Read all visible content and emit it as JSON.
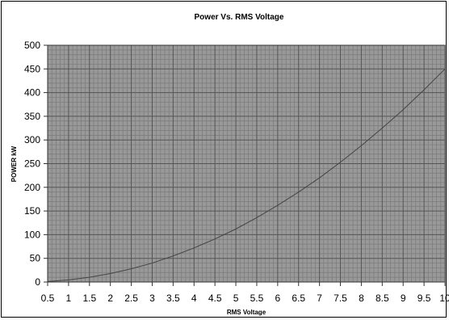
{
  "chart_data": {
    "type": "line",
    "title": "Power Vs. RMS Voltage",
    "xlabel": "RMS Voltage",
    "ylabel": "POWER kW",
    "xlim": [
      0.5,
      10
    ],
    "ylim": [
      0,
      500
    ],
    "x_ticks": [
      "0.5",
      "1",
      "1.5",
      "2",
      "2.5",
      "3",
      "3.5",
      "4",
      "4.5",
      "5",
      "5.5",
      "6",
      "6.5",
      "7",
      "7.5",
      "8",
      "8.5",
      "9",
      "9.5",
      "10"
    ],
    "y_ticks": [
      "0",
      "50",
      "100",
      "150",
      "200",
      "250",
      "300",
      "350",
      "400",
      "450",
      "500"
    ],
    "grid": true,
    "legend": "none",
    "colors": {
      "plot_background": "#999999",
      "grid_major": "#555555",
      "grid_minor": "#7a7a7a",
      "line": "#444444"
    },
    "series": [
      {
        "x": [
          0.5,
          1,
          1.5,
          2,
          2.5,
          3,
          3.5,
          4,
          4.5,
          5,
          5.5,
          6,
          6.5,
          7,
          7.5,
          8,
          8.5,
          9,
          9.5,
          10
        ],
        "values": [
          1.1,
          4.5,
          10,
          18,
          28,
          40,
          55,
          72,
          91,
          112,
          136,
          162,
          190,
          220,
          253,
          288,
          325,
          364,
          406,
          450
        ]
      }
    ]
  }
}
